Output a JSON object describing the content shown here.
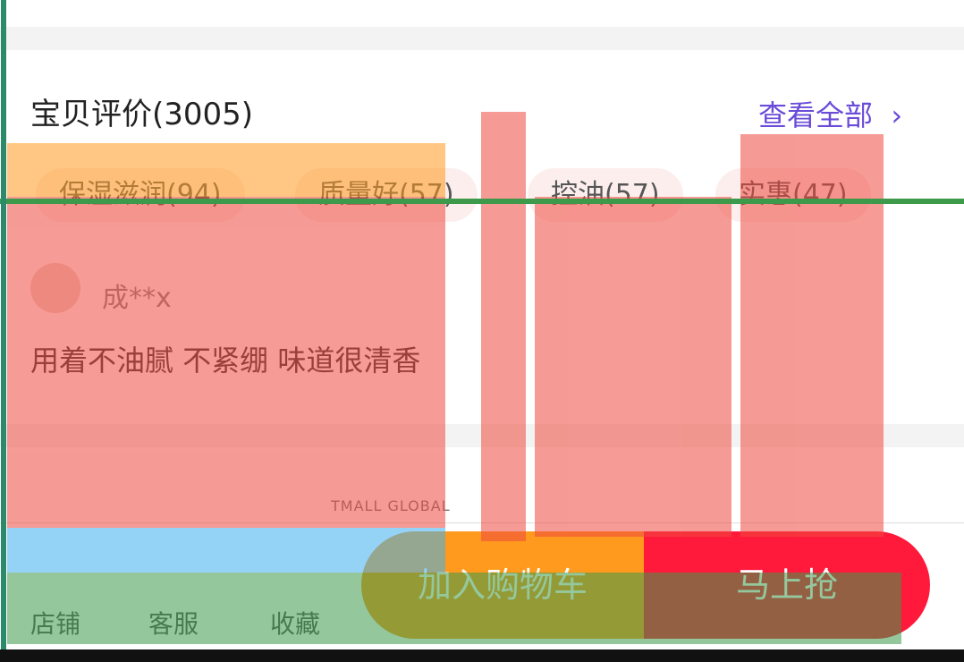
{
  "header": {
    "title": "宝贝评价(3005)",
    "link": "查看全部"
  },
  "tags": [
    "保湿滋润(94)",
    "质量好(57)",
    "控油(57)",
    "实惠(47)"
  ],
  "review": {
    "user": "成**x",
    "text": "用着不油腻 不紧绷 味道很清香"
  },
  "brand": "TMALL GLOBAL",
  "bottom_bar": {
    "shop": "店铺",
    "service": "客服",
    "favorite": "收藏",
    "add_cart": "加入购物车",
    "buy": "马上抢"
  }
}
